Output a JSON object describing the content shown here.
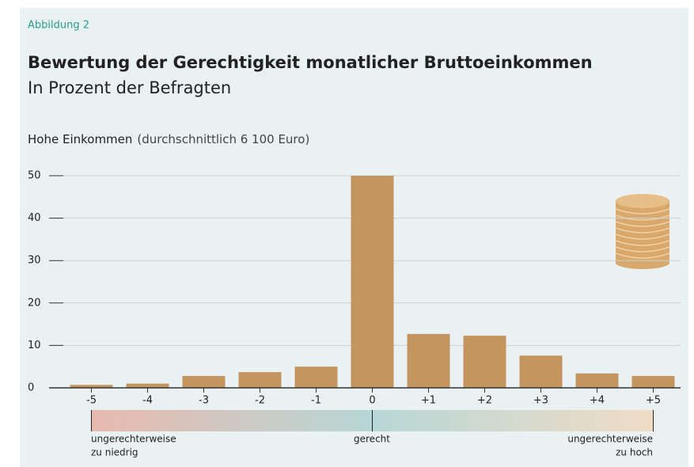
{
  "chart_data": {
    "type": "bar",
    "label": "Abbildung 2",
    "title": "Bewertung der Gerechtigkeit monatlicher Bruttoeinkommen",
    "subtitle": "In Prozent der Befragten",
    "panel_title": "Hohe Einkommen",
    "panel_note": "(durchschnittlich 6 100 Euro)",
    "categories": [
      "-5",
      "-4",
      "-3",
      "-2",
      "-1",
      "0",
      "+1",
      "+2",
      "+3",
      "+4",
      "+5"
    ],
    "values": [
      0.7,
      1.0,
      2.8,
      3.7,
      5.0,
      50,
      12.7,
      12.3,
      7.6,
      3.4,
      2.8
    ],
    "color": "#c4955f",
    "ylim": [
      0,
      50
    ],
    "yticks": [
      0,
      10,
      20,
      30,
      40,
      50
    ],
    "grid": true,
    "scale_labels": {
      "left": [
        "ungerechterweise",
        "zu niedrig"
      ],
      "center": "gerecht",
      "right": [
        "ungerechterweise",
        "zu hoch"
      ]
    }
  }
}
